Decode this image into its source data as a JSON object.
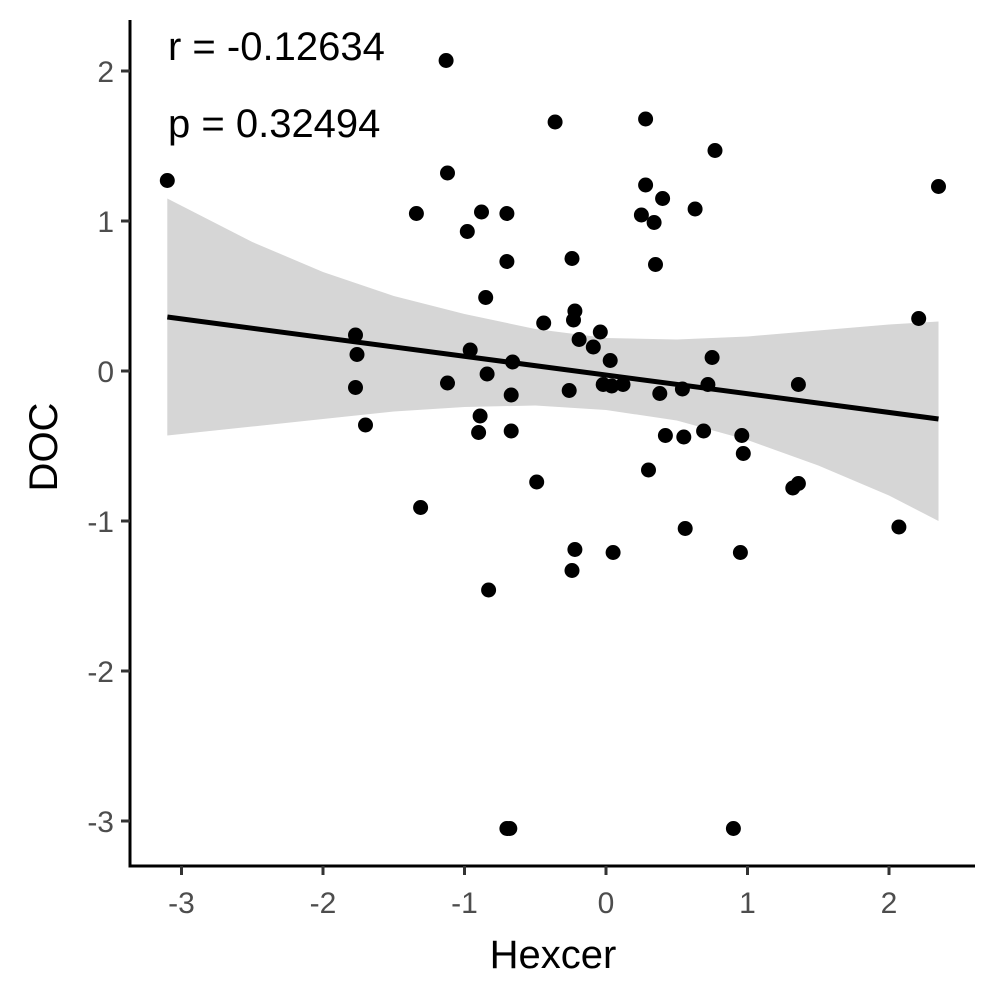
{
  "chart_data": {
    "type": "scatter",
    "xlabel": "Hexcer",
    "ylabel": "DOC",
    "xlim": [
      -3.35,
      2.6
    ],
    "ylim": [
      -3.3,
      2.3
    ],
    "x_ticks": [
      -3,
      -2,
      -1,
      0,
      1,
      2
    ],
    "y_ticks": [
      -3,
      -2,
      -1,
      0,
      1,
      2
    ],
    "x_tick_labels": [
      "-3",
      "-2",
      "-1",
      "0",
      "1",
      "2"
    ],
    "y_tick_labels": [
      "-3",
      "-2",
      "-1",
      "0",
      "1",
      "2"
    ],
    "annotations": {
      "r_text": "r = -0.12634",
      "p_text": "p = 0.32494"
    },
    "regression": {
      "x_start": -3.1,
      "x_end": 2.35,
      "y_start": 0.36,
      "y_end": -0.32
    },
    "confidence_band": {
      "x": [
        -3.1,
        -2.5,
        -2.0,
        -1.5,
        -1.0,
        -0.5,
        0.0,
        0.5,
        1.0,
        1.5,
        2.0,
        2.35
      ],
      "upper": [
        1.15,
        0.86,
        0.66,
        0.5,
        0.38,
        0.28,
        0.22,
        0.21,
        0.23,
        0.27,
        0.31,
        0.33
      ],
      "lower": [
        -0.43,
        -0.37,
        -0.32,
        -0.27,
        -0.24,
        -0.23,
        -0.26,
        -0.33,
        -0.46,
        -0.63,
        -0.83,
        -1.0
      ]
    },
    "points": [
      {
        "x": -3.1,
        "y": 1.27
      },
      {
        "x": -1.77,
        "y": 0.24
      },
      {
        "x": -1.76,
        "y": 0.11
      },
      {
        "x": -1.77,
        "y": -0.11
      },
      {
        "x": -1.7,
        "y": -0.36
      },
      {
        "x": -1.34,
        "y": 1.05
      },
      {
        "x": -1.31,
        "y": -0.91
      },
      {
        "x": -1.13,
        "y": 2.07
      },
      {
        "x": -1.12,
        "y": 1.32
      },
      {
        "x": -1.12,
        "y": -0.08
      },
      {
        "x": -0.98,
        "y": 0.93
      },
      {
        "x": -0.96,
        "y": 0.14
      },
      {
        "x": -0.88,
        "y": 1.06
      },
      {
        "x": -0.85,
        "y": 0.49
      },
      {
        "x": -0.89,
        "y": -0.3
      },
      {
        "x": -0.9,
        "y": -0.41
      },
      {
        "x": -0.84,
        "y": -0.02
      },
      {
        "x": -0.83,
        "y": -1.46
      },
      {
        "x": -0.7,
        "y": 1.05
      },
      {
        "x": -0.7,
        "y": 0.73
      },
      {
        "x": -0.66,
        "y": 0.06
      },
      {
        "x": -0.67,
        "y": -0.16
      },
      {
        "x": -0.67,
        "y": -0.4
      },
      {
        "x": -0.68,
        "y": -3.05
      },
      {
        "x": -0.7,
        "y": -3.05
      },
      {
        "x": -0.49,
        "y": -0.74
      },
      {
        "x": -0.44,
        "y": 0.32
      },
      {
        "x": -0.36,
        "y": 1.66
      },
      {
        "x": -0.24,
        "y": 0.75
      },
      {
        "x": -0.22,
        "y": 0.4
      },
      {
        "x": -0.23,
        "y": 0.34
      },
      {
        "x": -0.19,
        "y": 0.21
      },
      {
        "x": -0.26,
        "y": -0.13
      },
      {
        "x": -0.22,
        "y": -1.19
      },
      {
        "x": -0.24,
        "y": -1.33
      },
      {
        "x": -0.09,
        "y": 0.16
      },
      {
        "x": -0.04,
        "y": 0.26
      },
      {
        "x": 0.03,
        "y": 0.07
      },
      {
        "x": -0.02,
        "y": -0.09
      },
      {
        "x": 0.04,
        "y": -0.1
      },
      {
        "x": 0.12,
        "y": -0.09
      },
      {
        "x": 0.05,
        "y": -1.21
      },
      {
        "x": 0.25,
        "y": 1.04
      },
      {
        "x": 0.28,
        "y": 1.68
      },
      {
        "x": 0.28,
        "y": 1.24
      },
      {
        "x": 0.34,
        "y": 0.99
      },
      {
        "x": 0.35,
        "y": 0.71
      },
      {
        "x": 0.4,
        "y": 1.15
      },
      {
        "x": 0.38,
        "y": -0.15
      },
      {
        "x": 0.42,
        "y": -0.43
      },
      {
        "x": 0.3,
        "y": -0.66
      },
      {
        "x": 0.54,
        "y": -0.12
      },
      {
        "x": 0.55,
        "y": -0.44
      },
      {
        "x": 0.56,
        "y": -1.05
      },
      {
        "x": 0.63,
        "y": 1.08
      },
      {
        "x": 0.69,
        "y": -0.4
      },
      {
        "x": 0.72,
        "y": -0.09
      },
      {
        "x": 0.75,
        "y": 0.09
      },
      {
        "x": 0.77,
        "y": 1.47
      },
      {
        "x": 0.9,
        "y": -3.05
      },
      {
        "x": 0.95,
        "y": -1.21
      },
      {
        "x": 0.96,
        "y": -0.43
      },
      {
        "x": 0.97,
        "y": -0.55
      },
      {
        "x": 1.32,
        "y": -0.78
      },
      {
        "x": 1.36,
        "y": -0.09
      },
      {
        "x": 1.36,
        "y": -0.75
      },
      {
        "x": 2.07,
        "y": -1.04
      },
      {
        "x": 2.21,
        "y": 0.35
      },
      {
        "x": 2.35,
        "y": 1.23
      }
    ]
  }
}
